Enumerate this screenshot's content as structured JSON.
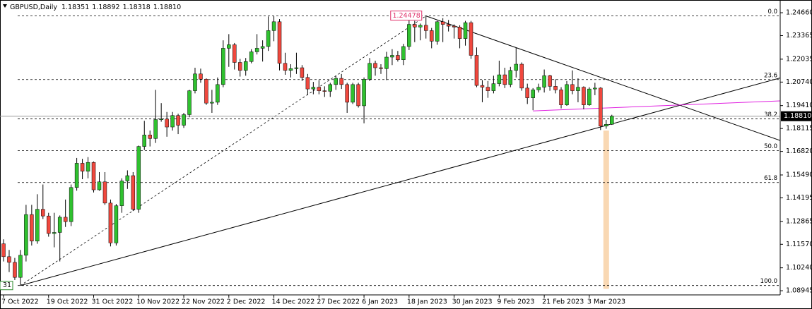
{
  "chart_data": {
    "type": "candlestick",
    "info": {
      "symbol": "GBPUSD,Daily",
      "open": "1.18351",
      "high": "1.18892",
      "low": "1.18318",
      "close": "1.18810"
    },
    "categories": [
      "7 Oct 2022",
      null,
      null,
      null,
      null,
      null,
      null,
      null,
      "19 Oct 2022",
      null,
      null,
      null,
      null,
      null,
      null,
      null,
      "31 Oct 2022",
      null,
      null,
      null,
      null,
      null,
      null,
      null,
      "10 Nov 2022",
      null,
      null,
      null,
      null,
      null,
      null,
      null,
      "22 Nov 2022",
      null,
      null,
      null,
      null,
      null,
      null,
      null,
      "2 Dec 2022",
      null,
      null,
      null,
      null,
      null,
      null,
      null,
      "14 Dec 2022",
      null,
      null,
      null,
      null,
      null,
      null,
      null,
      "27 Dec 2022",
      null,
      null,
      null,
      null,
      null,
      null,
      null,
      "6 Jan 2023",
      null,
      null,
      null,
      null,
      null,
      null,
      null,
      "18 Jan 2023",
      null,
      null,
      null,
      null,
      null,
      null,
      null,
      "30 Jan 2023",
      null,
      null,
      null,
      null,
      null,
      null,
      null,
      "9 Feb 2023",
      null,
      null,
      null,
      null,
      null,
      null,
      null,
      "21 Feb 2023",
      null,
      null,
      null,
      null,
      null,
      null,
      null,
      "3 Mar 2023",
      null,
      null,
      null,
      null
    ],
    "open": [
      1.116,
      1.1087,
      1.1055,
      1.097,
      1.1095,
      1.1325,
      1.1175,
      1.1355,
      1.1317,
      1.1218,
      1.1224,
      1.131,
      1.1285,
      1.1478,
      1.1615,
      1.157,
      1.162,
      1.1465,
      1.151,
      1.139,
      1.1165,
      1.1375,
      1.1515,
      1.1545,
      1.1355,
      1.171,
      1.1775,
      1.1755,
      1.1862,
      1.1865,
      1.182,
      1.1885,
      1.183,
      1.189,
      1.2025,
      1.212,
      1.209,
      1.1955,
      1.196,
      1.206,
      1.2265,
      1.2285,
      1.2185,
      1.214,
      1.219,
      1.2245,
      1.2265,
      1.2275,
      1.2365,
      1.2415,
      1.218,
      1.214,
      1.215,
      1.2155,
      1.21,
      1.2035,
      1.2045,
      1.2025,
      1.2022,
      1.206,
      1.2095,
      1.206,
      1.196,
      1.206,
      1.194,
      1.209,
      1.218,
      1.2155,
      1.215,
      1.2215,
      1.2225,
      1.22,
      1.2275,
      1.24,
      1.2385,
      1.2395,
      1.2365,
      1.2305,
      1.2415,
      1.24,
      1.239,
      1.2385,
      1.232,
      1.241,
      1.2225,
      1.2055,
      1.2045,
      1.2025,
      1.2065,
      1.2115,
      1.206,
      1.214,
      1.2175,
      1.204,
      1.1985,
      1.203,
      1.2045,
      1.211,
      1.205,
      1.203,
      1.1945,
      1.206,
      1.2025,
      1.2045,
      1.1945,
      1.2035,
      1.204,
      1.1825,
      1.18351
    ],
    "high": [
      1.1185,
      1.1125,
      1.108,
      1.1125,
      1.138,
      1.138,
      1.144,
      1.1495,
      1.1335,
      1.1335,
      1.132,
      1.141,
      1.1495,
      1.1645,
      1.164,
      1.165,
      1.1625,
      1.1565,
      1.1565,
      1.141,
      1.1385,
      1.153,
      1.1575,
      1.1565,
      1.1715,
      1.1855,
      1.18,
      1.203,
      1.1955,
      1.1905,
      1.1905,
      1.1895,
      1.19,
      1.203,
      1.2155,
      1.215,
      1.2095,
      1.203,
      1.21,
      1.231,
      1.2345,
      1.2295,
      1.2205,
      1.221,
      1.226,
      1.2345,
      1.231,
      1.2445,
      1.2446,
      1.243,
      1.224,
      1.2175,
      1.224,
      1.217,
      1.212,
      1.2075,
      1.2085,
      1.205,
      1.207,
      1.211,
      1.212,
      1.207,
      1.207,
      1.207,
      1.21,
      1.221,
      1.2195,
      1.2175,
      1.2245,
      1.226,
      1.225,
      1.229,
      1.2425,
      1.242,
      1.2405,
      1.24478,
      1.238,
      1.242,
      1.2435,
      1.2425,
      1.24,
      1.2395,
      1.242,
      1.242,
      1.227,
      1.2085,
      1.208,
      1.211,
      1.2195,
      1.2155,
      1.216,
      1.227,
      1.2185,
      1.2065,
      1.204,
      1.2065,
      1.2145,
      1.2115,
      1.209,
      1.2045,
      1.208,
      1.214,
      1.2095,
      1.205,
      1.2045,
      1.207,
      1.2045,
      1.186,
      1.18892
    ],
    "low": [
      1.106,
      1.1,
      1.0955,
      1.0924,
      1.106,
      1.115,
      1.116,
      1.13,
      1.12,
      1.114,
      1.106,
      1.1255,
      1.126,
      1.146,
      1.1525,
      1.153,
      1.145,
      1.146,
      1.138,
      1.1145,
      1.115,
      1.1335,
      1.147,
      1.1345,
      1.1335,
      1.169,
      1.171,
      1.173,
      1.185,
      1.1765,
      1.18,
      1.178,
      1.1815,
      1.1875,
      1.201,
      1.207,
      1.1945,
      1.19,
      1.1945,
      1.2045,
      1.216,
      1.2145,
      1.2105,
      1.211,
      1.218,
      1.223,
      1.219,
      1.225,
      1.2305,
      1.214,
      1.2115,
      1.21,
      1.212,
      1.208,
      1.2,
      1.2005,
      1.2005,
      1.199,
      1.199,
      1.203,
      1.2035,
      1.19,
      1.195,
      1.193,
      1.1841,
      1.208,
      1.211,
      1.212,
      1.2085,
      1.217,
      1.219,
      1.217,
      1.2255,
      1.23,
      1.231,
      1.232,
      1.2265,
      1.2285,
      1.23,
      1.236,
      1.232,
      1.2265,
      1.228,
      1.2205,
      1.2045,
      1.196,
      1.1985,
      1.201,
      1.205,
      1.204,
      1.2045,
      1.21,
      1.2025,
      1.195,
      1.1915,
      1.2015,
      1.2015,
      1.2025,
      1.201,
      1.1925,
      1.194,
      1.2005,
      1.196,
      1.192,
      1.194,
      1.2,
      1.1803,
      1.181,
      1.18318
    ],
    "close": [
      1.1087,
      1.1055,
      1.097,
      1.1095,
      1.1325,
      1.1175,
      1.1355,
      1.1317,
      1.1218,
      1.1224,
      1.131,
      1.1285,
      1.1478,
      1.1615,
      1.157,
      1.162,
      1.1465,
      1.151,
      1.139,
      1.1165,
      1.1375,
      1.1515,
      1.1545,
      1.1355,
      1.171,
      1.1775,
      1.1755,
      1.1862,
      1.1865,
      1.182,
      1.1885,
      1.183,
      1.189,
      1.2025,
      1.212,
      1.209,
      1.1955,
      1.196,
      1.206,
      1.2265,
      1.2285,
      1.2185,
      1.214,
      1.219,
      1.2245,
      1.2265,
      1.2275,
      1.2365,
      1.2415,
      1.218,
      1.214,
      1.215,
      1.2155,
      1.21,
      1.2035,
      1.2045,
      1.2025,
      1.2022,
      1.206,
      1.2095,
      1.206,
      1.196,
      1.206,
      1.194,
      1.209,
      1.218,
      1.2155,
      1.215,
      1.2215,
      1.2225,
      1.22,
      1.2275,
      1.24,
      1.2385,
      1.2395,
      1.2365,
      1.2305,
      1.2415,
      1.24,
      1.239,
      1.2385,
      1.232,
      1.241,
      1.2225,
      1.2055,
      1.2045,
      1.2025,
      1.2065,
      1.2115,
      1.206,
      1.214,
      1.2175,
      1.204,
      1.1985,
      1.203,
      1.2045,
      1.211,
      1.205,
      1.203,
      1.1945,
      1.206,
      1.2025,
      1.2045,
      1.1945,
      1.2035,
      1.204,
      1.1825,
      1.1835,
      1.1881
    ],
    "bull_color": "#2fc12f",
    "bear_color": "#f0483e",
    "wick_color": "#000000",
    "ylim": [
      1.0871,
      1.2518
    ],
    "yticks": [
      {
        "value": 1.2466,
        "label": "1.24660"
      },
      {
        "value": 1.23365,
        "label": "1.23365"
      },
      {
        "value": 1.22035,
        "label": "1.22035"
      },
      {
        "value": 1.2074,
        "label": "1.20740"
      },
      {
        "value": 1.1941,
        "label": "1.19410"
      },
      {
        "value": 1.18115,
        "label": "1.18115"
      },
      {
        "value": 1.1682,
        "label": "1.16820"
      },
      {
        "value": 1.1549,
        "label": "1.15490"
      },
      {
        "value": 1.14195,
        "label": "1.14195"
      },
      {
        "value": 1.12865,
        "label": "1.12865"
      },
      {
        "value": 1.1157,
        "label": "1.11570"
      },
      {
        "value": 1.1024,
        "label": "1.10240"
      },
      {
        "value": 1.08945,
        "label": "1.08945"
      }
    ],
    "last_price": {
      "value": 1.1881,
      "label": "1.18810"
    },
    "peak_label": 1.24478,
    "low_label": "31",
    "fib": {
      "color": "#000000",
      "from": [
        3,
        1.0924
      ],
      "to": [
        75,
        1.24478
      ],
      "levels": [
        {
          "label": "0.0",
          "price": 1.24478
        },
        {
          "label": "23.6",
          "price": 1.20882
        },
        {
          "label": "38.2",
          "price": 1.18657
        },
        {
          "label": "50.0",
          "price": 1.16859
        },
        {
          "label": "61.8",
          "price": 1.15061
        },
        {
          "label": "100.0",
          "price": 1.0924
        }
      ]
    },
    "trendlines": [
      {
        "color": "#000000",
        "from": [
          75,
          1.24478
        ],
        "to": [
          100,
          1.2168
        ]
      },
      {
        "color": "#000000",
        "from": [
          3,
          1.0924
        ],
        "to": [
          106,
          1.182
        ]
      },
      {
        "color": "#e020e0",
        "from": [
          94,
          1.1911
        ],
        "to": [
          108,
          1.1929
        ]
      }
    ],
    "highlight": {
      "index": 107,
      "from": 1.18,
      "to": 1.0905,
      "color": "#f9d8b3"
    }
  }
}
